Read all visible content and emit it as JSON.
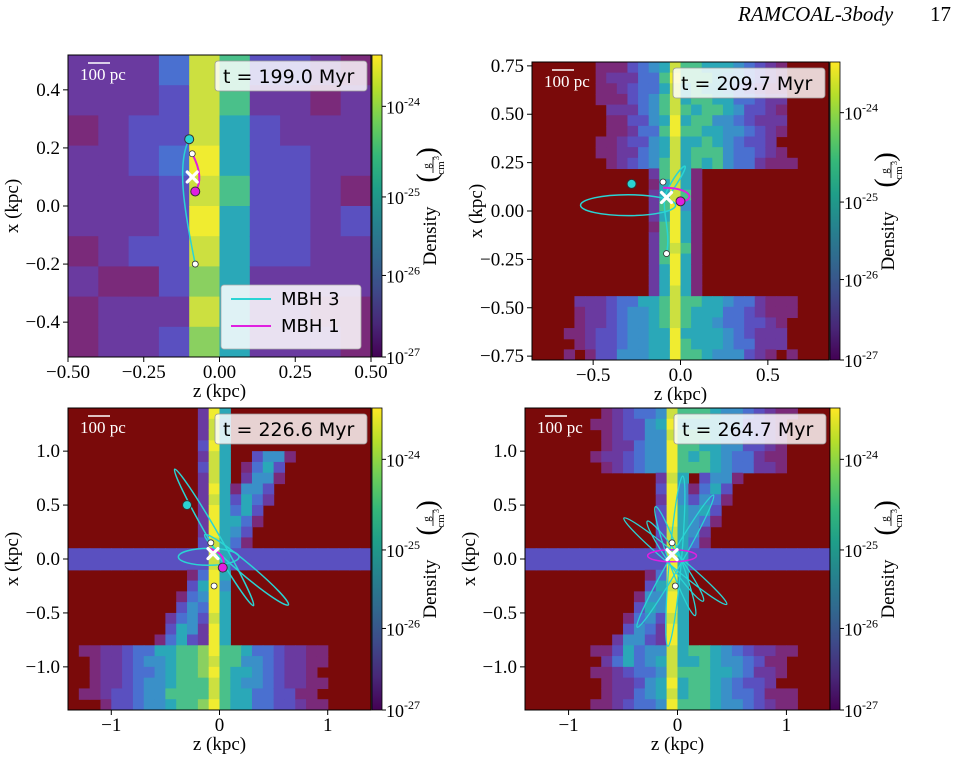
{
  "header": {
    "running_title": "RAMCOAL-3body",
    "page_number": "17"
  },
  "colors": {
    "background": "#7a0a0a",
    "cyan": "#2ad4d4",
    "magenta": "#e020e0",
    "marker": "#ffffff"
  },
  "colorbar": {
    "label_main": "Density",
    "label_unit_num": "g",
    "label_unit_den": "cm",
    "label_unit_exp": "3",
    "ticks": [
      {
        "base": "10",
        "exp": "-24"
      },
      {
        "base": "10",
        "exp": "-25"
      },
      {
        "base": "10",
        "exp": "-26"
      },
      {
        "base": "10",
        "exp": "-27"
      }
    ],
    "colormap": "viridis",
    "scale": "log"
  },
  "chart_data": [
    {
      "type": "heatmap",
      "time_label": "t = 199.0 Myr",
      "scale_bar": "100 pc",
      "xlabel": "z  (kpc)",
      "ylabel": "x  (kpc)",
      "xlim": [
        -0.5,
        0.5
      ],
      "ylim": [
        -0.52,
        0.52
      ],
      "xticks": [
        "-0.50",
        "-0.25",
        "0.00",
        "0.25",
        "0.50"
      ],
      "xtick_values": [
        -0.5,
        -0.25,
        0,
        0.25,
        0.5
      ],
      "yticks": [
        "-0.4",
        "-0.2",
        "0.0",
        "0.2",
        "0.4"
      ],
      "ytick_values": [
        -0.4,
        -0.2,
        0,
        0.2,
        0.4
      ],
      "legend": [
        {
          "name": "MBH 3",
          "color": "#2ad4d4"
        },
        {
          "name": "MBH 1",
          "color": "#e020e0"
        }
      ],
      "mbh3_end": [
        -0.1,
        0.23
      ],
      "mbh1_end": [
        -0.08,
        0.05
      ],
      "center": [
        -0.09,
        0.1
      ]
    },
    {
      "type": "heatmap",
      "time_label": "t = 209.7 Myr",
      "scale_bar": "100 pc",
      "xlabel": "z  (kpc)",
      "ylabel": "x  (kpc)",
      "xlim": [
        -0.85,
        0.85
      ],
      "ylim": [
        -0.77,
        0.77
      ],
      "xticks": [
        "-0.5",
        "0.0",
        "0.5"
      ],
      "xtick_values": [
        -0.5,
        0,
        0.5
      ],
      "yticks": [
        "-0.75",
        "-0.50",
        "-0.25",
        "0.00",
        "0.25",
        "0.50",
        "0.75"
      ],
      "ytick_values": [
        -0.75,
        -0.5,
        -0.25,
        0,
        0.25,
        0.5,
        0.75
      ],
      "mbh3_end": [
        -0.28,
        0.14
      ],
      "mbh1_end": [
        0.0,
        0.05
      ],
      "center": [
        -0.08,
        0.07
      ]
    },
    {
      "type": "heatmap",
      "time_label": "t = 226.6 Myr",
      "scale_bar": "100 pc",
      "xlabel": "z  (kpc)",
      "ylabel": "x  (kpc)",
      "xlim": [
        -1.4,
        1.4
      ],
      "ylim": [
        -1.4,
        1.4
      ],
      "xticks": [
        "-1",
        "0",
        "1"
      ],
      "xtick_values": [
        -1,
        0,
        1
      ],
      "yticks": [
        "-1.0",
        "-0.5",
        "0.0",
        "0.5",
        "1.0"
      ],
      "ytick_values": [
        -1,
        -0.5,
        0,
        0.5,
        1
      ],
      "mbh3_end": [
        -0.3,
        0.5
      ],
      "mbh1_end": [
        0.03,
        -0.08
      ],
      "center": [
        -0.06,
        0.05
      ]
    },
    {
      "type": "heatmap",
      "time_label": "t = 264.7 Myr",
      "scale_bar": "100 pc",
      "xlabel": "z  (kpc)",
      "ylabel": "x  (kpc)",
      "xlim": [
        -1.4,
        1.4
      ],
      "ylim": [
        -1.4,
        1.4
      ],
      "xticks": [
        "-1",
        "0",
        "1"
      ],
      "xtick_values": [
        -1,
        0,
        1
      ],
      "yticks": [
        "-1.0",
        "-0.5",
        "0.0",
        "0.5",
        "1.0"
      ],
      "ytick_values": [
        -1,
        -0.5,
        0,
        0.5,
        1
      ],
      "mbh3_end": [
        -0.05,
        0.05
      ],
      "mbh1_end": [
        -0.03,
        0.03
      ],
      "center": [
        -0.05,
        0.04
      ]
    }
  ]
}
